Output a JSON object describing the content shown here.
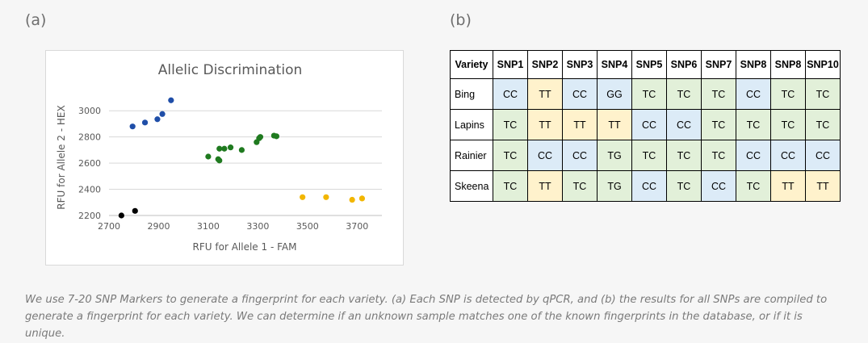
{
  "panels": {
    "a_label": "(a)",
    "b_label": "(b)"
  },
  "colors": {
    "blue": "#1f4ea8",
    "green": "#1f7a1f",
    "orange": "#f2b600",
    "black": "#000000",
    "cc": "#dcebf7",
    "tc": "#e2f0d9",
    "tt": "#fff2cc",
    "tg": "#e2f0d9",
    "gg": "#dcebf7"
  },
  "chart_data": {
    "type": "scatter",
    "title": "Allelic Discrimination",
    "xlabel": "RFU for Allele 1 - FAM",
    "ylabel": "RFU for Allele 2 - HEX",
    "xlim": [
      2700,
      3800
    ],
    "ylim": [
      2200,
      3100
    ],
    "x_ticks": [
      2700,
      2900,
      3100,
      3300,
      3500,
      3700
    ],
    "y_ticks": [
      2200,
      2400,
      2600,
      2800,
      3000
    ],
    "grid": "horizontal",
    "series": [
      {
        "color": "#1f4ea8",
        "points": [
          [
            2795,
            2880
          ],
          [
            2845,
            2910
          ],
          [
            2895,
            2935
          ],
          [
            2915,
            2975
          ],
          [
            2950,
            3080
          ]
        ]
      },
      {
        "color": "#1f7a1f",
        "points": [
          [
            3100,
            2650
          ],
          [
            3140,
            2630
          ],
          [
            3145,
            2620
          ],
          [
            3145,
            2710
          ],
          [
            3165,
            2710
          ],
          [
            3190,
            2720
          ],
          [
            3235,
            2700
          ],
          [
            3295,
            2760
          ],
          [
            3305,
            2790
          ],
          [
            3310,
            2800
          ],
          [
            3365,
            2810
          ],
          [
            3375,
            2805
          ]
        ]
      },
      {
        "color": "#f2b600",
        "points": [
          [
            3480,
            2340
          ],
          [
            3575,
            2340
          ],
          [
            3680,
            2320
          ],
          [
            3720,
            2330
          ]
        ]
      },
      {
        "color": "#000000",
        "points": [
          [
            2750,
            2200
          ],
          [
            2805,
            2235
          ]
        ]
      }
    ]
  },
  "table": {
    "headers": [
      "Variety",
      "SNP1",
      "SNP2",
      "SNP3",
      "SNP4",
      "SNP5",
      "SNP6",
      "SNP7",
      "SNP8",
      "SNP8",
      "SNP10"
    ],
    "rows": [
      {
        "variety": "Bing",
        "cells": [
          "CC",
          "TT",
          "CC",
          "GG",
          "TC",
          "TC",
          "TC",
          "CC",
          "TC",
          "TC"
        ]
      },
      {
        "variety": "Lapins",
        "cells": [
          "TC",
          "TT",
          "TT",
          "TT",
          "CC",
          "CC",
          "TC",
          "TC",
          "TC",
          "TC"
        ]
      },
      {
        "variety": "Rainier",
        "cells": [
          "TC",
          "CC",
          "CC",
          "TG",
          "TC",
          "TC",
          "TC",
          "CC",
          "CC",
          "CC"
        ]
      },
      {
        "variety": "Skeena",
        "cells": [
          "TC",
          "TT",
          "TC",
          "TG",
          "CC",
          "TC",
          "CC",
          "TC",
          "TT",
          "TT"
        ]
      }
    ]
  },
  "caption": {
    "line1": "We use 7-20 SNP Markers to generate a fingerprint for each variety. (a) Each SNP is detected by qPCR, and (b) the results for all SNPs are compiled to",
    "line2": "generate a fingerprint for each variety. We can determine if an unknown sample matches one of the known fingerprints in the database, or if it is unique."
  }
}
